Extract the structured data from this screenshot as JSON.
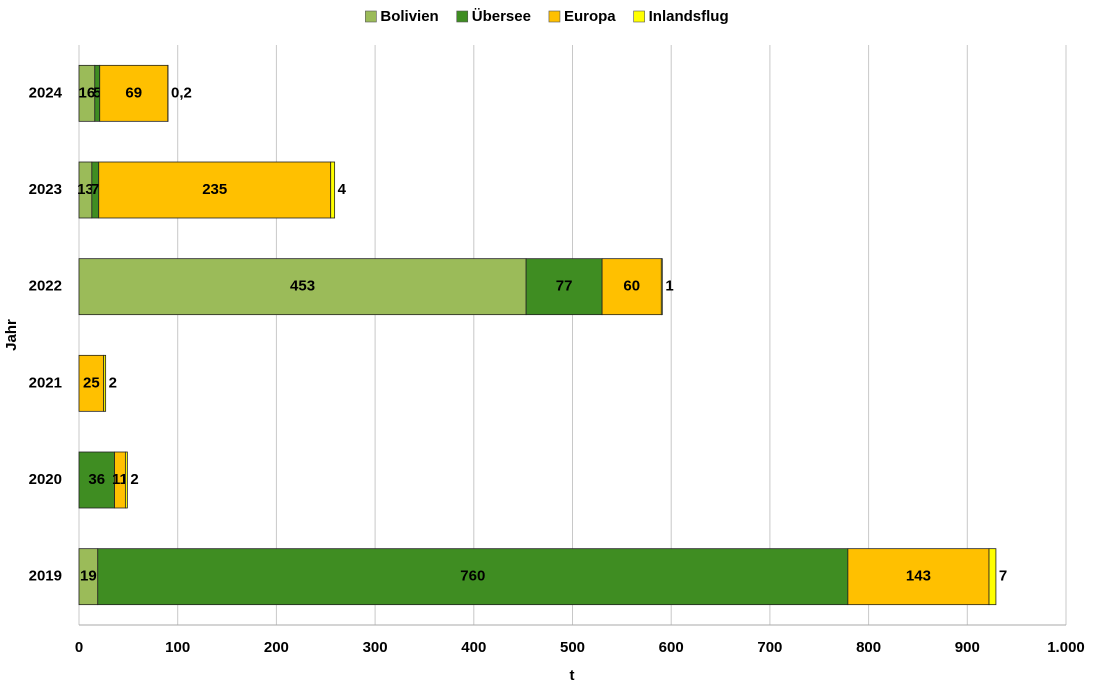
{
  "chart_data": {
    "type": "stacked-bar",
    "orientation": "horizontal",
    "x_label": "t",
    "y_label": "Jahr",
    "categories": [
      "2024",
      "2023",
      "2022",
      "2021",
      "2020",
      "2019"
    ],
    "series": [
      {
        "name": "Bolivien",
        "color": "#9bbb59",
        "values": [
          16,
          13,
          453,
          null,
          null,
          19
        ]
      },
      {
        "name": "Übersee",
        "color": "#3f8d22",
        "values": [
          5,
          7,
          77,
          null,
          36,
          760
        ]
      },
      {
        "name": "Europa",
        "color": "#ffc000",
        "values": [
          69,
          235,
          60,
          25,
          11,
          143
        ]
      },
      {
        "name": "Inlandsflug",
        "color": "#ffff00",
        "values": [
          0.2,
          4,
          1,
          2,
          2,
          7
        ],
        "value_labels": [
          "0,2",
          "4",
          "1",
          "2",
          "2",
          "7"
        ]
      }
    ],
    "xlim": [
      0,
      1000
    ],
    "xticks": [
      0,
      100,
      200,
      300,
      400,
      500,
      600,
      700,
      800,
      900,
      {
        "value": 1000,
        "label": "1.000"
      }
    ],
    "grid": true,
    "legend": "top"
  }
}
